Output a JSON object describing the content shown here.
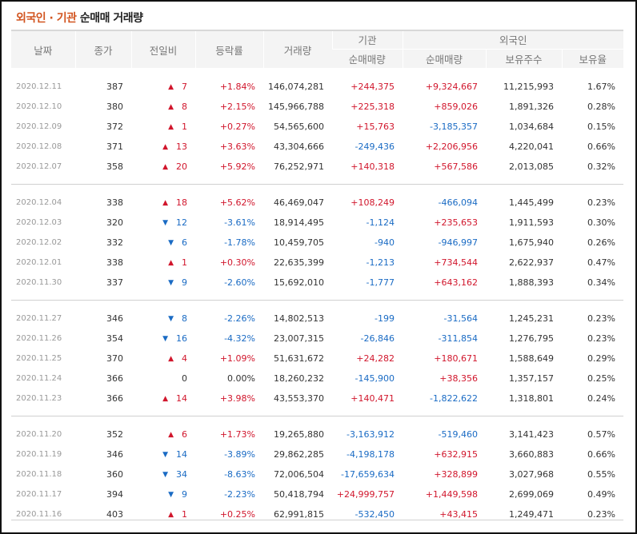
{
  "title": {
    "part1": "외국인 · 기관",
    "part2": "순매매  거래량"
  },
  "headers": {
    "date": "날짜",
    "close": "종가",
    "change": "전일비",
    "rate": "등락률",
    "volume": "거래량",
    "institution": "기관",
    "foreign": "외국인",
    "inst_net": "순매매량",
    "foreign_net": "순매매량",
    "holdings": "보유주수",
    "hold_ratio": "보유율"
  },
  "colors": {
    "up": "#d1162c",
    "down": "#1a6bc4",
    "accent": "#d2541f"
  },
  "groups": [
    [
      {
        "date": "2020.12.11",
        "close": "387",
        "dir": "up",
        "change": "7",
        "rate": "+1.84%",
        "volume": "146,074,281",
        "inst": "+244,375",
        "foreign": "+9,324,667",
        "holdings": "11,215,993",
        "ratio": "1.67%"
      },
      {
        "date": "2020.12.10",
        "close": "380",
        "dir": "up",
        "change": "8",
        "rate": "+2.15%",
        "volume": "145,966,788",
        "inst": "+225,318",
        "foreign": "+859,026",
        "holdings": "1,891,326",
        "ratio": "0.28%"
      },
      {
        "date": "2020.12.09",
        "close": "372",
        "dir": "up",
        "change": "1",
        "rate": "+0.27%",
        "volume": "54,565,600",
        "inst": "+15,763",
        "foreign": "-3,185,357",
        "holdings": "1,034,684",
        "ratio": "0.15%"
      },
      {
        "date": "2020.12.08",
        "close": "371",
        "dir": "up",
        "change": "13",
        "rate": "+3.63%",
        "volume": "43,304,666",
        "inst": "-249,436",
        "foreign": "+2,206,956",
        "holdings": "4,220,041",
        "ratio": "0.66%"
      },
      {
        "date": "2020.12.07",
        "close": "358",
        "dir": "up",
        "change": "20",
        "rate": "+5.92%",
        "volume": "76,252,971",
        "inst": "+140,318",
        "foreign": "+567,586",
        "holdings": "2,013,085",
        "ratio": "0.32%"
      }
    ],
    [
      {
        "date": "2020.12.04",
        "close": "338",
        "dir": "up",
        "change": "18",
        "rate": "+5.62%",
        "volume": "46,469,047",
        "inst": "+108,249",
        "foreign": "-466,094",
        "holdings": "1,445,499",
        "ratio": "0.23%"
      },
      {
        "date": "2020.12.03",
        "close": "320",
        "dir": "down",
        "change": "12",
        "rate": "-3.61%",
        "volume": "18,914,495",
        "inst": "-1,124",
        "foreign": "+235,653",
        "holdings": "1,911,593",
        "ratio": "0.30%"
      },
      {
        "date": "2020.12.02",
        "close": "332",
        "dir": "down",
        "change": "6",
        "rate": "-1.78%",
        "volume": "10,459,705",
        "inst": "-940",
        "foreign": "-946,997",
        "holdings": "1,675,940",
        "ratio": "0.26%"
      },
      {
        "date": "2020.12.01",
        "close": "338",
        "dir": "up",
        "change": "1",
        "rate": "+0.30%",
        "volume": "22,635,399",
        "inst": "-1,213",
        "foreign": "+734,544",
        "holdings": "2,622,937",
        "ratio": "0.47%"
      },
      {
        "date": "2020.11.30",
        "close": "337",
        "dir": "down",
        "change": "9",
        "rate": "-2.60%",
        "volume": "15,692,010",
        "inst": "-1,777",
        "foreign": "+643,162",
        "holdings": "1,888,393",
        "ratio": "0.34%"
      }
    ],
    [
      {
        "date": "2020.11.27",
        "close": "346",
        "dir": "down",
        "change": "8",
        "rate": "-2.26%",
        "volume": "14,802,513",
        "inst": "-199",
        "foreign": "-31,564",
        "holdings": "1,245,231",
        "ratio": "0.23%"
      },
      {
        "date": "2020.11.26",
        "close": "354",
        "dir": "down",
        "change": "16",
        "rate": "-4.32%",
        "volume": "23,007,315",
        "inst": "-26,846",
        "foreign": "-311,854",
        "holdings": "1,276,795",
        "ratio": "0.23%"
      },
      {
        "date": "2020.11.25",
        "close": "370",
        "dir": "up",
        "change": "4",
        "rate": "+1.09%",
        "volume": "51,631,672",
        "inst": "+24,282",
        "foreign": "+180,671",
        "holdings": "1,588,649",
        "ratio": "0.29%"
      },
      {
        "date": "2020.11.24",
        "close": "366",
        "dir": "flat",
        "change": "0",
        "rate": "0.00%",
        "volume": "18,260,232",
        "inst": "-145,900",
        "foreign": "+38,356",
        "holdings": "1,357,157",
        "ratio": "0.25%"
      },
      {
        "date": "2020.11.23",
        "close": "366",
        "dir": "up",
        "change": "14",
        "rate": "+3.98%",
        "volume": "43,553,370",
        "inst": "+140,471",
        "foreign": "-1,822,622",
        "holdings": "1,318,801",
        "ratio": "0.24%"
      }
    ],
    [
      {
        "date": "2020.11.20",
        "close": "352",
        "dir": "up",
        "change": "6",
        "rate": "+1.73%",
        "volume": "19,265,880",
        "inst": "-3,163,912",
        "foreign": "-519,460",
        "holdings": "3,141,423",
        "ratio": "0.57%"
      },
      {
        "date": "2020.11.19",
        "close": "346",
        "dir": "down",
        "change": "14",
        "rate": "-3.89%",
        "volume": "29,862,285",
        "inst": "-4,198,178",
        "foreign": "+632,915",
        "holdings": "3,660,883",
        "ratio": "0.66%"
      },
      {
        "date": "2020.11.18",
        "close": "360",
        "dir": "down",
        "change": "34",
        "rate": "-8.63%",
        "volume": "72,006,504",
        "inst": "-17,659,634",
        "foreign": "+328,899",
        "holdings": "3,027,968",
        "ratio": "0.55%"
      },
      {
        "date": "2020.11.17",
        "close": "394",
        "dir": "down",
        "change": "9",
        "rate": "-2.23%",
        "volume": "50,418,794",
        "inst": "+24,999,757",
        "foreign": "+1,449,598",
        "holdings": "2,699,069",
        "ratio": "0.49%"
      },
      {
        "date": "2020.11.16",
        "close": "403",
        "dir": "up",
        "change": "1",
        "rate": "+0.25%",
        "volume": "62,991,815",
        "inst": "-532,450",
        "foreign": "+43,415",
        "holdings": "1,249,471",
        "ratio": "0.23%"
      }
    ]
  ]
}
